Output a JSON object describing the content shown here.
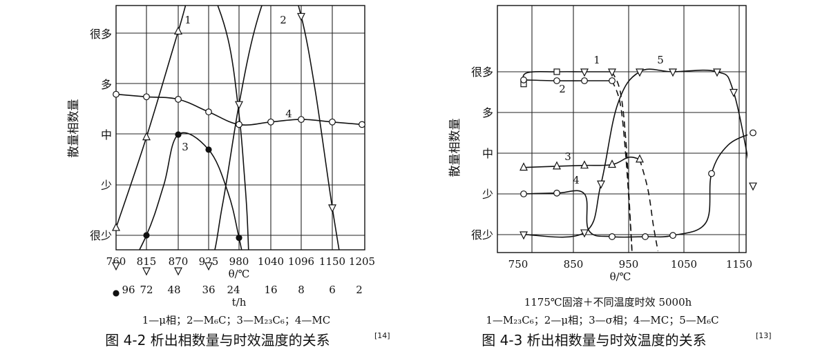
{
  "chart_data": [
    {
      "type": "line",
      "ylabel": "散量相数量",
      "y_levels": [
        "很少",
        "少",
        "中",
        "多",
        "很多"
      ],
      "x_ticks": [
        "760",
        "815",
        "870",
        "925",
        "980",
        "1040",
        "1096",
        "1150",
        "1205"
      ],
      "xlabel": "θ/℃",
      "x2_ticks": [
        "96",
        "72",
        "48",
        "36",
        "24",
        "16",
        "8",
        "6",
        "2"
      ],
      "x2label": "t/h",
      "legend": "1—μ相；2—M₆C；3—M₂₃C₆；4—MC",
      "caption_main": "图 4-2 析出相数量与时效温度的关系",
      "caption_ref": "[14]",
      "series": [
        {
          "label": "1",
          "marker": "triangle-up",
          "points": [
            [
              760,
              0.15
            ],
            [
              815,
              1.95
            ],
            [
              870,
              4.05
            ],
            [
              925,
              4.96
            ]
          ],
          "curve": [
            [
              760,
              0.15
            ],
            [
              815,
              1.95
            ],
            [
              870,
              4.05
            ],
            [
              900,
              5.1
            ],
            [
              925,
              4.96
            ],
            [
              960,
              3.9
            ],
            [
              980,
              2.4
            ],
            [
              990,
              1.2
            ],
            [
              995,
              0.45
            ],
            [
              998,
              -0.3
            ]
          ]
        },
        {
          "label": "2",
          "marker": "triangle-down",
          "points": [
            [
              760,
              -0.6
            ],
            [
              815,
              -0.7
            ],
            [
              870,
              -0.7
            ],
            [
              925,
              -0.6
            ],
            [
              980,
              2.6
            ],
            [
              1040,
              4.95
            ],
            [
              1096,
              4.35
            ],
            [
              1150,
              0.55
            ]
          ],
          "curve": [
            [
              760,
              -0.6
            ],
            [
              815,
              -0.7
            ],
            [
              870,
              -0.7
            ],
            [
              925,
              -0.6
            ],
            [
              950,
              0.6
            ],
            [
              980,
              2.6
            ],
            [
              1010,
              4.1
            ],
            [
              1040,
              4.95
            ],
            [
              1070,
              5.1
            ],
            [
              1096,
              4.35
            ],
            [
              1120,
              2.9
            ],
            [
              1150,
              0.55
            ],
            [
              1180,
              -1.4
            ]
          ]
        },
        {
          "label": "3",
          "marker": "circle-filled",
          "points": [
            [
              760,
              -1.15
            ],
            [
              815,
              0.0
            ],
            [
              870,
              2.0
            ],
            [
              925,
              1.7
            ],
            [
              980,
              -0.05
            ]
          ],
          "curve": [
            [
              760,
              -1.15
            ],
            [
              815,
              0.0
            ],
            [
              845,
              1.0
            ],
            [
              870,
              2.0
            ],
            [
              925,
              1.7
            ],
            [
              960,
              0.85
            ],
            [
              980,
              -0.05
            ],
            [
              1000,
              -1.1
            ],
            [
              1010,
              -1.9
            ]
          ]
        },
        {
          "label": "4",
          "marker": "circle-open",
          "points": [
            [
              760,
              2.8
            ],
            [
              815,
              2.75
            ],
            [
              870,
              2.7
            ],
            [
              925,
              2.45
            ],
            [
              980,
              2.2
            ],
            [
              1040,
              2.25
            ],
            [
              1096,
              2.3
            ],
            [
              1150,
              2.25
            ],
            [
              1205,
              2.2
            ]
          ],
          "curve": [
            [
              760,
              2.8
            ],
            [
              815,
              2.75
            ],
            [
              870,
              2.7
            ],
            [
              925,
              2.45
            ],
            [
              980,
              2.2
            ],
            [
              1040,
              2.25
            ],
            [
              1096,
              2.3
            ],
            [
              1150,
              2.25
            ],
            [
              1205,
              2.2
            ]
          ]
        }
      ]
    },
    {
      "type": "line",
      "ylabel": "散量相数量",
      "y_levels": [
        "很少",
        "少",
        "中",
        "多",
        "很多"
      ],
      "x_ticks": [
        "750",
        "850",
        "950",
        "1050",
        "1150"
      ],
      "xlabel": "θ/℃",
      "subtitle": "1175℃固溶＋不同温度时效 5000h",
      "legend": "1—M₂₃C₆；2—μ相；3—σ相；4—MC；5—M₆C",
      "caption_main": "图 4-3 析出相数量与时效温度的关系",
      "caption_ref": "[13]",
      "series": [
        {
          "label": "1",
          "marker": "square-then-triangle-down",
          "points": [
            [
              760,
              3.7
            ],
            [
              820,
              4.0
            ],
            [
              870,
              4.0
            ],
            [
              920,
              4.0
            ]
          ],
          "curve": [
            [
              760,
              3.7
            ],
            [
              765,
              3.97
            ],
            [
              820,
              4.0
            ],
            [
              870,
              4.0
            ],
            [
              920,
              4.0
            ],
            [
              935,
              3.5
            ],
            [
              945,
              2.3
            ],
            [
              952,
              0.6
            ],
            [
              956,
              -0.4
            ]
          ],
          "dashed_from": 935
        },
        {
          "label": "2",
          "marker": "circle-open",
          "points": [
            [
              760,
              3.8
            ],
            [
              820,
              3.78
            ],
            [
              870,
              3.78
            ],
            [
              920,
              3.78
            ]
          ],
          "curve": [
            [
              760,
              3.8
            ],
            [
              820,
              3.78
            ],
            [
              870,
              3.78
            ],
            [
              920,
              3.78
            ],
            [
              935,
              3.2
            ],
            [
              945,
              1.9
            ],
            [
              952,
              0.5
            ],
            [
              956,
              -0.4
            ]
          ],
          "dashed_from": 935
        },
        {
          "label": "3",
          "marker": "triangle-up",
          "points": [
            [
              760,
              1.65
            ],
            [
              820,
              1.68
            ],
            [
              870,
              1.7
            ],
            [
              920,
              1.72
            ],
            [
              970,
              1.85
            ]
          ],
          "curve": [
            [
              760,
              1.65
            ],
            [
              820,
              1.68
            ],
            [
              870,
              1.7
            ],
            [
              920,
              1.72
            ],
            [
              950,
              1.9
            ],
            [
              970,
              1.85
            ],
            [
              985,
              1.1
            ],
            [
              995,
              0.2
            ],
            [
              1003,
              -0.4
            ]
          ],
          "dashed_from": 975
        },
        {
          "label": "4",
          "marker": "circle-open",
          "points": [
            [
              760,
              1.0
            ],
            [
              820,
              1.02
            ],
            [
              920,
              -0.05
            ],
            [
              980,
              -0.05
            ],
            [
              1030,
              -0.02
            ],
            [
              1100,
              1.5
            ],
            [
              1175,
              2.5
            ]
          ],
          "curve": [
            [
              760,
              1.0
            ],
            [
              820,
              1.02
            ],
            [
              870,
              1.0
            ],
            [
              878,
              0.1
            ],
            [
              920,
              -0.05
            ],
            [
              980,
              -0.05
            ],
            [
              1030,
              -0.02
            ],
            [
              1090,
              0.3
            ],
            [
              1100,
              1.5
            ],
            [
              1130,
              2.2
            ],
            [
              1175,
              2.5
            ]
          ]
        },
        {
          "label": "5",
          "marker": "triangle-down",
          "points": [
            [
              760,
              0.0
            ],
            [
              870,
              0.05
            ],
            [
              900,
              1.25
            ],
            [
              970,
              4.0
            ],
            [
              1030,
              4.0
            ],
            [
              1110,
              4.0
            ],
            [
              1140,
              3.5
            ],
            [
              1175,
              1.2
            ]
          ],
          "curve": [
            [
              760,
              0.0
            ],
            [
              870,
              0.05
            ],
            [
              900,
              1.25
            ],
            [
              930,
              3.2
            ],
            [
              970,
              4.0
            ],
            [
              1030,
              4.0
            ],
            [
              1110,
              4.0
            ],
            [
              1140,
              3.5
            ],
            [
              1175,
              1.2
            ]
          ]
        }
      ]
    }
  ]
}
